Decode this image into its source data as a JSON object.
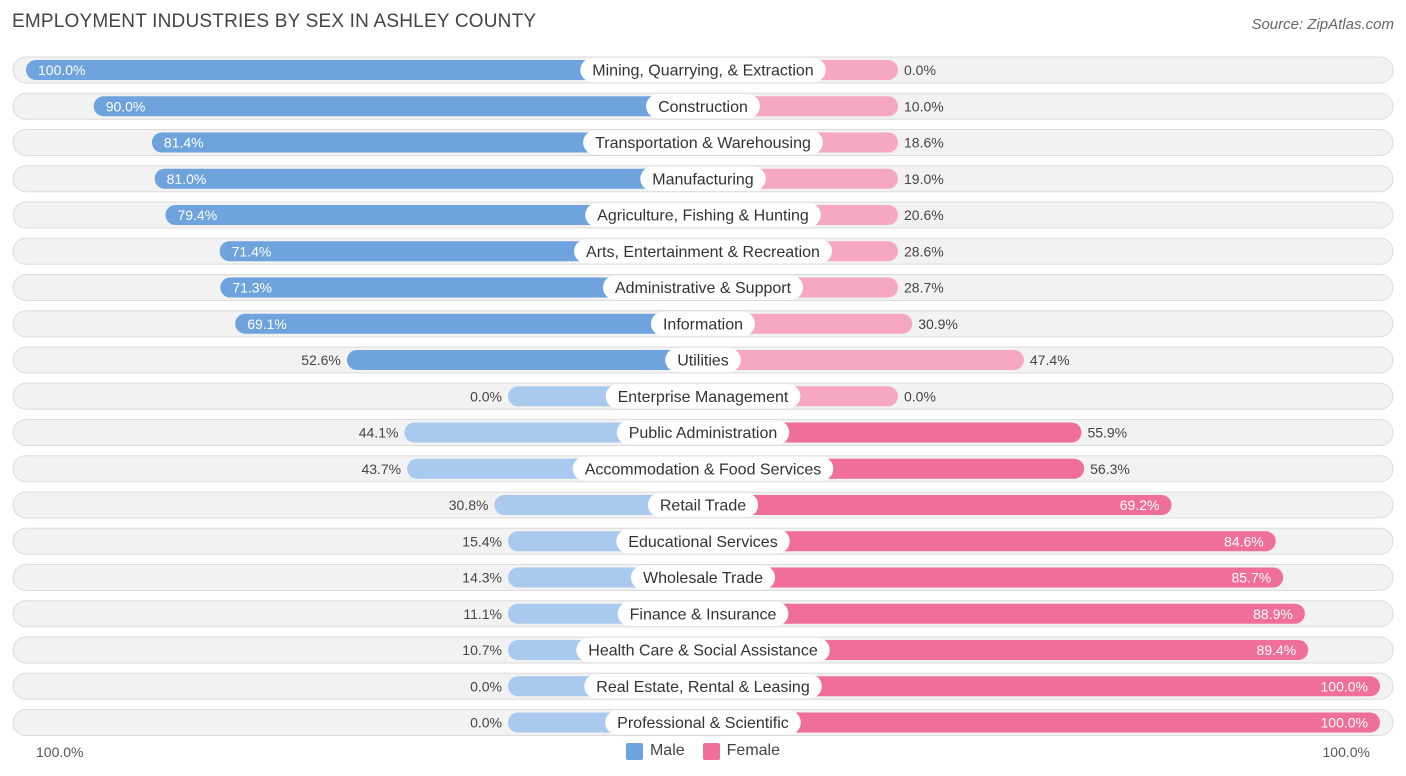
{
  "title": "EMPLOYMENT INDUSTRIES BY SEX IN ASHLEY COUNTY",
  "source": "Source: ZipAtlas.com",
  "axis": {
    "left": "100.0%",
    "right": "100.0%"
  },
  "legend": {
    "male": "Male",
    "female": "Female"
  },
  "colors": {
    "male_dark": "#6ea3dd",
    "male_light": "#a9c9ee",
    "female_dark": "#f06f98",
    "female_light": "#f7a8c1",
    "row_bg": "#f2f2f2",
    "label_bg": "#ffffff"
  },
  "chart_data": {
    "type": "bar",
    "orientation": "horizontal-diverging",
    "title": "EMPLOYMENT INDUSTRIES BY SEX IN ASHLEY COUNTY",
    "xlim": [
      0,
      100
    ],
    "categories": [
      "Mining, Quarrying, & Extraction",
      "Construction",
      "Transportation & Warehousing",
      "Manufacturing",
      "Agriculture, Fishing & Hunting",
      "Arts, Entertainment & Recreation",
      "Administrative & Support",
      "Information",
      "Utilities",
      "Enterprise Management",
      "Public Administration",
      "Accommodation & Food Services",
      "Retail Trade",
      "Educational Services",
      "Wholesale Trade",
      "Finance & Insurance",
      "Health Care & Social Assistance",
      "Real Estate, Rental & Leasing",
      "Professional & Scientific"
    ],
    "series": [
      {
        "name": "Male",
        "values": [
          100.0,
          90.0,
          81.4,
          81.0,
          79.4,
          71.4,
          71.3,
          69.1,
          52.6,
          0.0,
          44.1,
          43.7,
          30.8,
          15.4,
          14.3,
          11.1,
          10.7,
          0.0,
          0.0
        ],
        "labels": [
          "100.0%",
          "90.0%",
          "81.4%",
          "81.0%",
          "79.4%",
          "71.4%",
          "71.3%",
          "69.1%",
          "52.6%",
          "0.0%",
          "44.1%",
          "43.7%",
          "30.8%",
          "15.4%",
          "14.3%",
          "11.1%",
          "10.7%",
          "0.0%",
          "0.0%"
        ]
      },
      {
        "name": "Female",
        "values": [
          0.0,
          10.0,
          18.6,
          19.0,
          20.6,
          28.6,
          28.7,
          30.9,
          47.4,
          0.0,
          55.9,
          56.3,
          69.2,
          84.6,
          85.7,
          88.9,
          89.4,
          100.0,
          100.0
        ],
        "labels": [
          "0.0%",
          "10.0%",
          "18.6%",
          "19.0%",
          "20.6%",
          "28.6%",
          "28.7%",
          "30.9%",
          "47.4%",
          "0.0%",
          "55.9%",
          "56.3%",
          "69.2%",
          "84.6%",
          "85.7%",
          "88.9%",
          "89.4%",
          "100.0%",
          "100.0%"
        ]
      }
    ]
  }
}
